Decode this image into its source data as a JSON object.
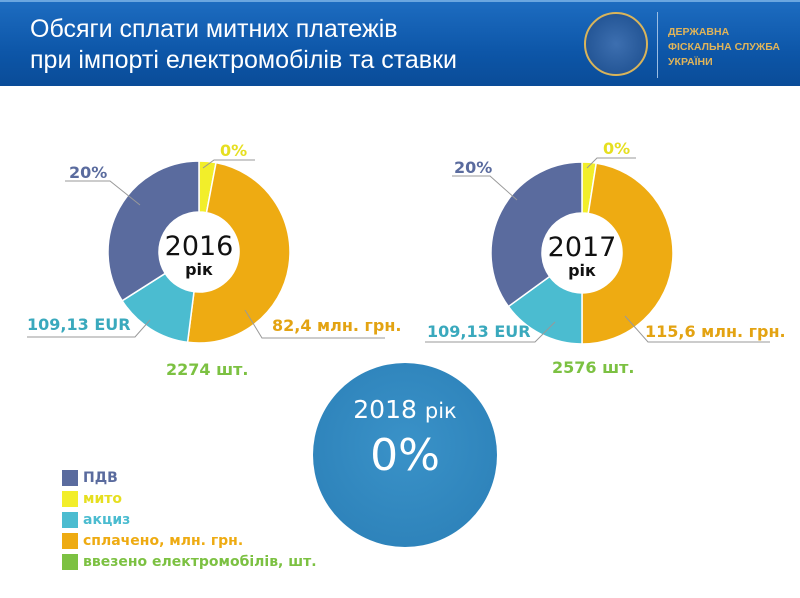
{
  "header": {
    "title_line1": "Обсяги сплати митних платежів",
    "title_line2": "при імпорті електромобілів та ставки",
    "org_line1": "ДЕРЖАВНА",
    "org_line2": "ФІСКАЛЬНА СЛУЖБА",
    "org_line3": "УКРАЇНИ",
    "logo": "state-fiscal-service-emblem"
  },
  "colors": {
    "pdv": "#5a6b9e",
    "myto": "#f2ee2a",
    "akcyz": "#4bbcd0",
    "paid": "#eeab12",
    "imported": "#7cc142"
  },
  "chart_data": [
    {
      "type": "pie",
      "year": "2016",
      "suffix": "рік",
      "segments": [
        {
          "key": "myto",
          "label": "0%"
        },
        {
          "key": "paid",
          "label": "82,4 млн. грн."
        },
        {
          "key": "akcyz",
          "label": "109,13 EUR"
        },
        {
          "key": "pdv",
          "label": "20%"
        }
      ],
      "shares": [
        3,
        49,
        14,
        34
      ],
      "imported": "2274 шт."
    },
    {
      "type": "pie",
      "year": "2017",
      "suffix": "рік",
      "segments": [
        {
          "key": "myto",
          "label": "0%"
        },
        {
          "key": "paid",
          "label": "115,6 млн. грн."
        },
        {
          "key": "akcyz",
          "label": "109,13 EUR"
        },
        {
          "key": "pdv",
          "label": "20%"
        }
      ],
      "shares": [
        2.5,
        47.5,
        15,
        35
      ],
      "imported": "2576 шт."
    }
  ],
  "year2018": {
    "year": "2018",
    "suffix": "рік",
    "rate": "0%"
  },
  "legend": [
    {
      "key": "pdv",
      "label": "ПДВ"
    },
    {
      "key": "myto",
      "label": "мито"
    },
    {
      "key": "akcyz",
      "label": "акциз"
    },
    {
      "key": "paid",
      "label": "сплачено,  млн. грн."
    },
    {
      "key": "imported",
      "label": "ввезено електромобілів, шт."
    }
  ]
}
